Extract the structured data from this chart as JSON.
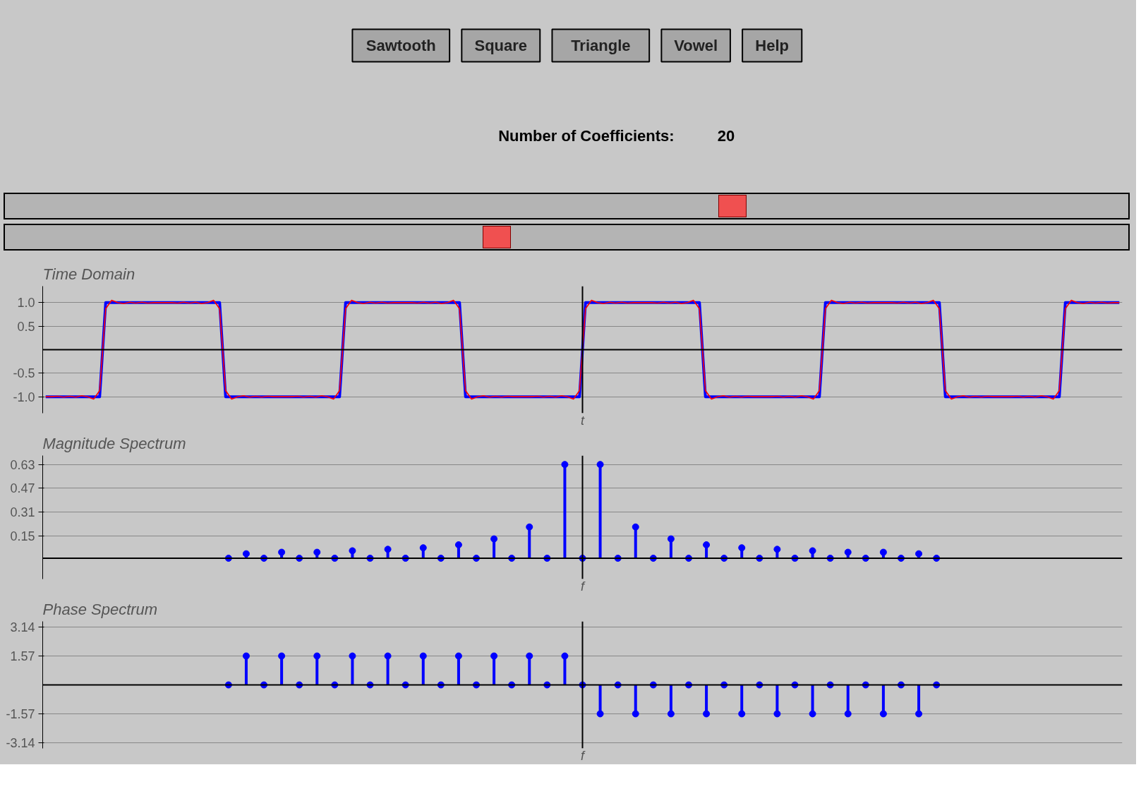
{
  "chart_data": [
    {
      "type": "other",
      "annotations": [
        "Sawtooth",
        "Square",
        "Triangle",
        "Vowel",
        "Help",
        "Number of Coefficients:",
        "20"
      ]
    },
    {
      "type": "line",
      "title": "Time Domain",
      "xlabel": "t",
      "grid": "y",
      "tick_labels": "y",
      "ylim": [
        -1.35,
        1.35
      ],
      "yticks": [
        {
          "value": 1,
          "label": "1.0"
        },
        0.5,
        -0.5,
        {
          "value": -1,
          "label": "-1.0"
        }
      ],
      "categories": [
        null,
        null,
        null,
        null,
        null,
        null,
        null,
        null,
        null,
        null,
        null,
        null,
        null,
        null,
        null,
        null,
        null,
        null,
        null,
        null,
        null,
        null,
        null,
        null,
        null,
        null,
        null,
        null,
        null,
        null,
        null,
        null,
        null,
        null,
        null,
        null,
        null,
        null,
        null,
        null,
        null,
        null,
        null,
        null,
        null,
        null,
        null,
        null,
        null,
        null,
        null,
        null,
        null,
        null,
        null,
        null,
        null,
        null,
        null,
        null,
        null,
        null,
        null,
        null,
        null,
        null,
        null,
        null,
        null,
        null,
        null,
        null,
        null,
        null,
        null,
        null,
        null,
        null,
        null,
        null,
        null,
        null,
        null,
        null,
        null,
        null,
        null,
        null,
        null,
        null,
        null,
        null,
        null,
        null,
        null,
        null,
        null,
        null,
        null,
        null,
        null,
        null,
        null,
        null,
        null,
        null,
        null,
        null,
        null,
        null,
        null,
        null,
        null,
        null,
        null,
        null,
        null,
        null,
        null,
        null,
        null,
        null,
        null,
        null,
        null,
        null,
        null,
        null,
        null,
        null,
        null,
        null,
        null,
        null,
        null,
        null,
        null,
        null,
        null,
        null,
        null,
        null,
        null,
        null,
        null,
        null,
        null,
        null,
        null,
        null,
        null,
        null,
        null,
        null,
        null,
        null,
        null,
        null,
        null,
        null,
        null,
        null,
        null,
        null,
        null,
        null,
        null,
        null,
        null,
        null,
        null,
        null,
        null,
        null,
        null,
        null,
        null,
        null,
        null,
        null
      ],
      "series": [
        {
          "color": "#0000ff",
          "values": [
            -1,
            -1,
            -1,
            -1,
            -1,
            -1,
            -1,
            -1,
            -1,
            -1,
            1,
            1,
            1,
            1,
            1,
            1,
            1,
            1,
            1,
            1,
            1,
            1,
            1,
            1,
            1,
            1,
            1,
            1,
            1,
            1,
            -1,
            -1,
            -1,
            -1,
            -1,
            -1,
            -1,
            -1,
            -1,
            -1,
            -1,
            -1,
            -1,
            -1,
            -1,
            -1,
            -1,
            -1,
            -1,
            -1,
            1,
            1,
            1,
            1,
            1,
            1,
            1,
            1,
            1,
            1,
            1,
            1,
            1,
            1,
            1,
            1,
            1,
            1,
            1,
            1,
            -1,
            -1,
            -1,
            -1,
            -1,
            -1,
            -1,
            -1,
            -1,
            -1,
            -1,
            -1,
            -1,
            -1,
            -1,
            -1,
            -1,
            -1,
            -1,
            -1,
            1,
            1,
            1,
            1,
            1,
            1,
            1,
            1,
            1,
            1,
            1,
            1,
            1,
            1,
            1,
            1,
            1,
            1,
            1,
            1,
            -1,
            -1,
            -1,
            -1,
            -1,
            -1,
            -1,
            -1,
            -1,
            -1,
            -1,
            -1,
            -1,
            -1,
            -1,
            -1,
            -1,
            -1,
            -1,
            -1,
            1,
            1,
            1,
            1,
            1,
            1,
            1,
            1,
            1,
            1,
            1,
            1,
            1,
            1,
            1,
            1,
            1,
            1,
            1,
            1,
            -1,
            -1,
            -1,
            -1,
            -1,
            -1,
            -1,
            -1,
            -1,
            -1,
            -1,
            -1,
            -1,
            -1,
            -1,
            -1,
            -1,
            -1,
            -1,
            -1,
            1,
            1,
            1,
            1,
            1,
            1,
            1,
            1,
            1,
            1
          ]
        },
        {
          "color": "#ff0000",
          "values": [
            -1.0,
            -1.0,
            -0.99,
            -1.01,
            -0.99,
            -1.01,
            -0.98,
            -1.0,
            -1.05,
            -0.87,
            0.87,
            1.05,
            1.0,
            0.98,
            1.01,
            0.99,
            1.01,
            0.99,
            1.0,
            1.0,
            1.0,
            1.0,
            0.99,
            1.01,
            0.99,
            1.01,
            0.98,
            1.0,
            1.05,
            0.87,
            -0.87,
            -1.05,
            -1.0,
            -0.98,
            -1.01,
            -0.99,
            -1.01,
            -0.99,
            -1.0,
            -1.0,
            -1.0,
            -1.0,
            -0.99,
            -1.01,
            -0.99,
            -1.01,
            -0.98,
            -1.0,
            -1.05,
            -0.87,
            0.87,
            1.05,
            1.0,
            0.98,
            1.01,
            0.99,
            1.01,
            0.99,
            1.0,
            1.0,
            1.0,
            1.0,
            0.99,
            1.01,
            0.99,
            1.01,
            0.98,
            1.0,
            1.05,
            0.87,
            -0.87,
            -1.05,
            -1.0,
            -0.98,
            -1.01,
            -0.99,
            -1.01,
            -0.99,
            -1.0,
            -1.0,
            -1.0,
            -1.0,
            -0.99,
            -1.01,
            -0.99,
            -1.01,
            -0.98,
            -1.0,
            -1.05,
            -0.87,
            0.87,
            1.05,
            1.0,
            0.98,
            1.01,
            0.99,
            1.01,
            0.99,
            1.0,
            1.0,
            1.0,
            1.0,
            0.99,
            1.01,
            0.99,
            1.01,
            0.98,
            1.0,
            1.05,
            0.87,
            -0.87,
            -1.05,
            -1.0,
            -0.98,
            -1.01,
            -0.99,
            -1.01,
            -0.99,
            -1.0,
            -1.0,
            -1.0,
            -1.0,
            -0.99,
            -1.01,
            -0.99,
            -1.01,
            -0.98,
            -1.0,
            -1.05,
            -0.87,
            0.87,
            1.05,
            1.0,
            0.98,
            1.01,
            0.99,
            1.01,
            0.99,
            1.0,
            1.0,
            1.0,
            1.0,
            0.99,
            1.01,
            0.99,
            1.01,
            0.98,
            1.0,
            1.05,
            0.87,
            -0.87,
            -1.05,
            -1.0,
            -0.98,
            -1.01,
            -0.99,
            -1.01,
            -0.99,
            -1.0,
            -1.0,
            -1.0,
            -1.0,
            -0.99,
            -1.01,
            -0.99,
            -1.01,
            -0.98,
            -1.0,
            -1.05,
            -0.87,
            0.87,
            1.05,
            1.0,
            0.98,
            1.01,
            0.99,
            1.01,
            0.99,
            1.0,
            1.0
          ]
        }
      ]
    },
    {
      "type": "lollipop",
      "title": "Magnitude Spectrum",
      "xlabel": "f",
      "grid": "y",
      "tick_labels": "y",
      "marker": "circle",
      "ylim": [
        -0.14,
        0.69
      ],
      "yticks": [
        0.15,
        0.31,
        0.47,
        0.63
      ],
      "categories": [
        null,
        null,
        null,
        null,
        null,
        null,
        null,
        null,
        null,
        null,
        null,
        null,
        null,
        null,
        null,
        null,
        null,
        null,
        null,
        null,
        null,
        null,
        null,
        null,
        null,
        null,
        null,
        null,
        null,
        null,
        null,
        null,
        null,
        null,
        null,
        null,
        null,
        null,
        null,
        null,
        null,
        null,
        null,
        null,
        null,
        null,
        null,
        null,
        null,
        null,
        null,
        null,
        null,
        null,
        null,
        null,
        null,
        null,
        null,
        null,
        null
      ],
      "series": [
        {
          "color": "#0000ff",
          "values": [
            null,
            null,
            null,
            null,
            null,
            null,
            null,
            null,
            null,
            null,
            0,
            0.03,
            0,
            0.04,
            0,
            0.04,
            0,
            0.05,
            0,
            0.06,
            0,
            0.07,
            0,
            0.09,
            0,
            0.13,
            0,
            0.21,
            0,
            0.63,
            0,
            0.63,
            0,
            0.21,
            0,
            0.13,
            0,
            0.09,
            0,
            0.07,
            0,
            0.06,
            0,
            0.05,
            0,
            0.04,
            0,
            0.04,
            0,
            0.03,
            0,
            null,
            null,
            null,
            null,
            null,
            null,
            null,
            null,
            null,
            null
          ]
        }
      ]
    },
    {
      "type": "lollipop",
      "title": "Phase Spectrum",
      "xlabel": "f",
      "grid": "y",
      "tick_labels": "y",
      "marker": "circle",
      "ylim": [
        -3.45,
        3.45
      ],
      "yticks": [
        3.14,
        1.57,
        -1.57,
        -3.14
      ],
      "categories": [
        null,
        null,
        null,
        null,
        null,
        null,
        null,
        null,
        null,
        null,
        null,
        null,
        null,
        null,
        null,
        null,
        null,
        null,
        null,
        null,
        null,
        null,
        null,
        null,
        null,
        null,
        null,
        null,
        null,
        null,
        null,
        null,
        null,
        null,
        null,
        null,
        null,
        null,
        null,
        null,
        null,
        null,
        null,
        null,
        null,
        null,
        null,
        null,
        null,
        null,
        null,
        null,
        null,
        null,
        null,
        null,
        null,
        null,
        null,
        null,
        null
      ],
      "series": [
        {
          "color": "#0000ff",
          "values": [
            null,
            null,
            null,
            null,
            null,
            null,
            null,
            null,
            null,
            null,
            0,
            1.57,
            0,
            1.57,
            0,
            1.57,
            0,
            1.57,
            0,
            1.57,
            0,
            1.57,
            0,
            1.57,
            0,
            1.57,
            0,
            1.57,
            0,
            1.57,
            0,
            -1.57,
            0,
            -1.57,
            0,
            -1.57,
            0,
            -1.57,
            0,
            -1.57,
            0,
            -1.57,
            0,
            -1.57,
            0,
            -1.57,
            0,
            -1.57,
            0,
            -1.57,
            0,
            null,
            null,
            null,
            null,
            null,
            null,
            null,
            null,
            null,
            null
          ]
        }
      ]
    }
  ]
}
